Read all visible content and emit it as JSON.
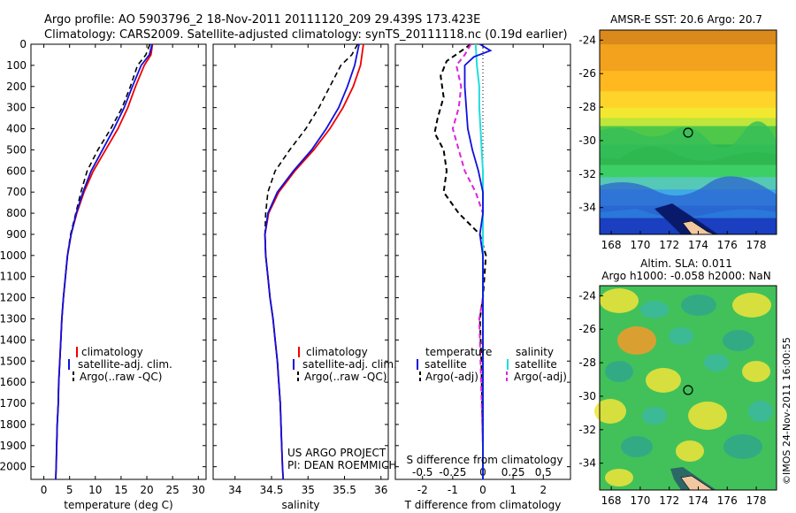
{
  "header": {
    "line1": "Argo profile: AO 5903796_2 18-Nov-2011 20111120_209 29.439S 173.423E",
    "line2": "Climatology: CARS2009. Satellite-adjusted climatology: synTS_20111118.nc (0.19d earlier)"
  },
  "colors": {
    "climatology": "#ee0000",
    "satellite": "#1010dd",
    "argo": "#000000",
    "sal_satellite": "#22dddd",
    "sal_argo": "#dd22dd"
  },
  "depth_axis": {
    "ticks": [
      "0",
      "100",
      "200",
      "300",
      "400",
      "500",
      "600",
      "700",
      "800",
      "900",
      "1000",
      "1100",
      "1200",
      "1300",
      "1400",
      "1500",
      "1600",
      "1700",
      "1800",
      "1900",
      "2000"
    ],
    "ylim": [
      0,
      2060
    ]
  },
  "panel_temp": {
    "xlabel": "temperature (deg C)",
    "xticks": [
      "0",
      "5",
      "10",
      "15",
      "20",
      "25",
      "30"
    ],
    "xlim": [
      -2.5,
      31.5
    ],
    "legend": [
      "climatology",
      "satellite-adj. clim.",
      "Argo(..raw -QC)"
    ]
  },
  "panel_sal": {
    "xlabel": "salinity",
    "xticks": [
      "34",
      "34.5",
      "35",
      "35.5",
      "36"
    ],
    "xlim": [
      33.7,
      36.1
    ],
    "legend": [
      "climatology",
      "satellite-adj. clim.",
      "Argo(..raw -QC)"
    ],
    "project_line1": "US ARGO PROJECT",
    "project_line2": "PI: DEAN ROEMMICH"
  },
  "panel_diff": {
    "xlabel_bottom": "T difference from climatology",
    "xlabel_top": "S difference from climatology",
    "tticks": [
      "-2",
      "-1",
      "0",
      "1",
      "2"
    ],
    "sticks": [
      "-0.5",
      "-0.25",
      "0",
      "0.25",
      "0.5"
    ],
    "legend_temp_title": "temperature",
    "legend_sal_title": "salinity",
    "legend_temp": [
      "satellite",
      "Argo(-adj)"
    ],
    "legend_sal": [
      "satellite",
      "Argo(-adj)"
    ]
  },
  "map_sst": {
    "title": "AMSR-E SST: 20.6  Argo: 20.7",
    "xticks": [
      "168",
      "170",
      "172",
      "174",
      "176",
      "178"
    ],
    "yticks": [
      "-24",
      "-26",
      "-28",
      "-30",
      "-32",
      "-34"
    ]
  },
  "map_sla": {
    "title1": "Altim. SLA: 0.011",
    "title2": "Argo h1000: -0.058  h2000: NaN",
    "xticks": [
      "168",
      "170",
      "172",
      "174",
      "176",
      "178"
    ],
    "yticks": [
      "-24",
      "-26",
      "-28",
      "-30",
      "-32",
      "-34"
    ],
    "credit": "©IMOS 24-Nov-2011 16:00:55"
  },
  "chart_data": [
    {
      "type": "line",
      "xlabel": "temperature (deg C)",
      "ylabel": "",
      "xlim": [
        -2.5,
        31.5
      ],
      "ylim": [
        2060,
        0
      ],
      "series": [
        {
          "name": "climatology",
          "points": [
            [
              21.1,
              0
            ],
            [
              20.8,
              50
            ],
            [
              19.5,
              100
            ],
            [
              17.8,
              200
            ],
            [
              16.3,
              300
            ],
            [
              14.4,
              400
            ],
            [
              12,
              500
            ],
            [
              9.6,
              600
            ],
            [
              7.8,
              700
            ],
            [
              6.4,
              800
            ],
            [
              5.3,
              900
            ],
            [
              4.6,
              1000
            ],
            [
              4.2,
              1100
            ],
            [
              3.8,
              1200
            ],
            [
              3.5,
              1300
            ],
            [
              3.3,
              1400
            ],
            [
              3.1,
              1500
            ],
            [
              2.9,
              1600
            ],
            [
              2.8,
              1700
            ],
            [
              2.6,
              1800
            ],
            [
              2.5,
              1900
            ],
            [
              2.4,
              2000
            ],
            [
              2.3,
              2060
            ]
          ]
        },
        {
          "name": "satellite-adj. clim.",
          "points": [
            [
              21,
              0
            ],
            [
              20.5,
              50
            ],
            [
              18.9,
              100
            ],
            [
              17.2,
              200
            ],
            [
              15.6,
              300
            ],
            [
              13.6,
              400
            ],
            [
              11.4,
              500
            ],
            [
              9.2,
              600
            ],
            [
              7.6,
              700
            ],
            [
              6.3,
              800
            ],
            [
              5.3,
              900
            ],
            [
              4.6,
              1000
            ],
            [
              4.2,
              1100
            ],
            [
              3.8,
              1200
            ],
            [
              3.5,
              1300
            ],
            [
              3.3,
              1400
            ],
            [
              3.1,
              1500
            ],
            [
              2.9,
              1600
            ],
            [
              2.8,
              1700
            ],
            [
              2.6,
              1800
            ],
            [
              2.5,
              1900
            ],
            [
              2.4,
              2000
            ],
            [
              2.3,
              2060
            ]
          ]
        },
        {
          "name": "Argo(..raw -QC)",
          "points": [
            [
              20.6,
              0
            ],
            [
              19.8,
              50
            ],
            [
              18.2,
              100
            ],
            [
              16.8,
              200
            ],
            [
              15.2,
              300
            ],
            [
              13,
              400
            ],
            [
              10.5,
              500
            ],
            [
              8.4,
              600
            ],
            [
              7.2,
              700
            ],
            [
              6.2,
              800
            ],
            [
              5.2,
              900
            ],
            [
              4.6,
              1000
            ],
            [
              4.2,
              1100
            ],
            [
              3.8,
              1200
            ],
            [
              3.5,
              1300
            ],
            [
              3.3,
              1400
            ],
            [
              3.1,
              1500
            ],
            [
              2.9,
              1600
            ],
            [
              2.8,
              1700
            ],
            [
              2.6,
              1800
            ],
            [
              2.5,
              1900
            ]
          ]
        }
      ]
    },
    {
      "type": "line",
      "xlabel": "salinity",
      "ylabel": "",
      "xlim": [
        33.7,
        36.1
      ],
      "ylim": [
        2060,
        0
      ],
      "series": [
        {
          "name": "climatology",
          "points": [
            [
              35.76,
              0
            ],
            [
              35.72,
              100
            ],
            [
              35.62,
              200
            ],
            [
              35.48,
              300
            ],
            [
              35.3,
              400
            ],
            [
              35.08,
              500
            ],
            [
              34.82,
              600
            ],
            [
              34.6,
              700
            ],
            [
              34.46,
              800
            ],
            [
              34.41,
              900
            ],
            [
              34.42,
              1000
            ],
            [
              34.45,
              1100
            ],
            [
              34.48,
              1200
            ],
            [
              34.52,
              1300
            ],
            [
              34.55,
              1400
            ],
            [
              34.58,
              1500
            ],
            [
              34.6,
              1600
            ],
            [
              34.62,
              1700
            ],
            [
              34.63,
              1800
            ],
            [
              34.64,
              1900
            ],
            [
              34.65,
              2000
            ],
            [
              34.66,
              2060
            ]
          ]
        },
        {
          "name": "satellite-adj. clim.",
          "points": [
            [
              35.7,
              0
            ],
            [
              35.64,
              100
            ],
            [
              35.54,
              200
            ],
            [
              35.42,
              300
            ],
            [
              35.25,
              400
            ],
            [
              35.05,
              500
            ],
            [
              34.8,
              600
            ],
            [
              34.58,
              700
            ],
            [
              34.45,
              800
            ],
            [
              34.41,
              900
            ],
            [
              34.42,
              1000
            ],
            [
              34.45,
              1100
            ],
            [
              34.48,
              1200
            ],
            [
              34.52,
              1300
            ],
            [
              34.55,
              1400
            ],
            [
              34.58,
              1500
            ],
            [
              34.6,
              1600
            ],
            [
              34.62,
              1700
            ],
            [
              34.63,
              1800
            ],
            [
              34.64,
              1900
            ],
            [
              34.65,
              2000
            ],
            [
              34.66,
              2060
            ]
          ]
        },
        {
          "name": "Argo(..raw -QC)",
          "points": [
            [
              35.68,
              0
            ],
            [
              35.6,
              50
            ],
            [
              35.45,
              100
            ],
            [
              35.3,
              200
            ],
            [
              35.15,
              300
            ],
            [
              34.97,
              400
            ],
            [
              34.75,
              500
            ],
            [
              34.55,
              600
            ],
            [
              34.45,
              700
            ],
            [
              34.42,
              800
            ],
            [
              34.41,
              900
            ],
            [
              34.42,
              1000
            ],
            [
              34.45,
              1100
            ],
            [
              34.48,
              1200
            ],
            [
              34.52,
              1300
            ],
            [
              34.55,
              1400
            ],
            [
              34.58,
              1500
            ],
            [
              34.6,
              1600
            ],
            [
              34.62,
              1700
            ],
            [
              34.63,
              1800
            ],
            [
              34.64,
              1900
            ]
          ]
        }
      ]
    },
    {
      "type": "line",
      "xlabel": "T difference from climatology",
      "ylabel": "",
      "xlim": [
        -2.9,
        2.9
      ],
      "ylim": [
        2060,
        0
      ],
      "series": [
        {
          "name": "temperature satellite",
          "points": [
            [
              -0.1,
              0
            ],
            [
              0.25,
              30
            ],
            [
              -0.3,
              60
            ],
            [
              -0.6,
              100
            ],
            [
              -0.6,
              200
            ],
            [
              -0.55,
              300
            ],
            [
              -0.5,
              400
            ],
            [
              -0.35,
              500
            ],
            [
              -0.15,
              600
            ],
            [
              0,
              700
            ],
            [
              0,
              800
            ],
            [
              -0.1,
              900
            ],
            [
              0,
              1000
            ],
            [
              0,
              1200
            ],
            [
              0,
              1500
            ],
            [
              0,
              2000
            ],
            [
              0,
              2060
            ]
          ]
        },
        {
          "name": "temperature Argo(-adj)",
          "points": [
            [
              -0.4,
              0
            ],
            [
              -0.8,
              40
            ],
            [
              -1.2,
              80
            ],
            [
              -1.4,
              150
            ],
            [
              -1.3,
              250
            ],
            [
              -1.5,
              350
            ],
            [
              -1.6,
              420
            ],
            [
              -1.3,
              500
            ],
            [
              -1.2,
              600
            ],
            [
              -1.3,
              700
            ],
            [
              -0.8,
              800
            ],
            [
              -0.1,
              900
            ],
            [
              0.1,
              1000
            ],
            [
              0,
              1200
            ],
            [
              -0.1,
              1300
            ],
            [
              -0.05,
              1500
            ],
            [
              0,
              1900
            ]
          ]
        },
        {
          "name": "salinity satellite",
          "points": [
            [
              -0.06,
              0
            ],
            [
              -0.05,
              100
            ],
            [
              -0.03,
              200
            ],
            [
              -0.03,
              300
            ],
            [
              -0.02,
              400
            ],
            [
              -0.01,
              500
            ],
            [
              0,
              600
            ],
            [
              0,
              700
            ],
            [
              0,
              1000
            ],
            [
              0,
              1500
            ],
            [
              0,
              2000
            ],
            [
              0,
              2060
            ]
          ]
        },
        {
          "name": "salinity Argo(-adj)",
          "points": [
            [
              -0.1,
              0
            ],
            [
              -0.15,
              50
            ],
            [
              -0.22,
              100
            ],
            [
              -0.18,
              200
            ],
            [
              -0.2,
              300
            ],
            [
              -0.25,
              400
            ],
            [
              -0.2,
              500
            ],
            [
              -0.15,
              600
            ],
            [
              -0.06,
              700
            ],
            [
              0,
              800
            ],
            [
              0,
              900
            ],
            [
              0,
              1000
            ],
            [
              0,
              1200
            ],
            [
              -0.03,
              1300
            ],
            [
              -0.02,
              1500
            ],
            [
              0,
              1900
            ]
          ]
        }
      ]
    }
  ]
}
